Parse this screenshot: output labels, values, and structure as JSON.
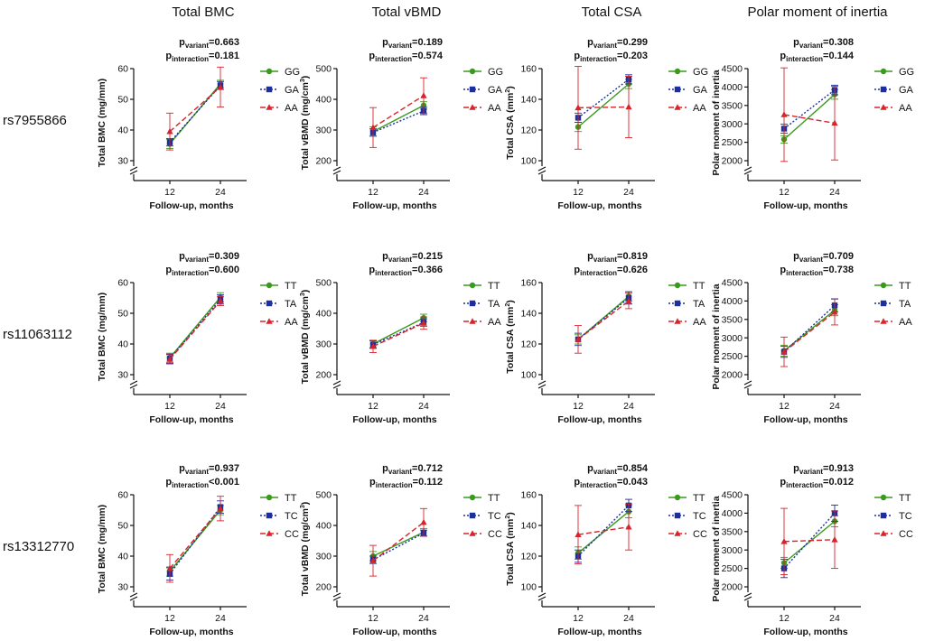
{
  "column_titles": [
    "Total BMC",
    "Total vBMD",
    "Total CSA",
    "Polar moment of inertia"
  ],
  "row_labels": [
    "rs7955866",
    "rs11063112",
    "rs13312770"
  ],
  "series_colors": [
    "#3a9a1e",
    "#1c2f9e",
    "#d8232a"
  ],
  "x_title": "Follow-up, months",
  "x_ticks": [
    "12",
    "24"
  ],
  "p_variant_label": "p",
  "p_variant_sub": "variant",
  "p_interaction_sub": "interaction",
  "chart_data": [
    {
      "type": "line",
      "row": 0,
      "col": 0,
      "ylabel": "Total BMC (mg/mm)",
      "ylim": [
        30,
        60
      ],
      "yticks": [
        30,
        40,
        50,
        60
      ],
      "p_variant": "=0.663",
      "p_interaction": "=0.181",
      "categories": [
        12,
        24
      ],
      "series": [
        {
          "name": "GG",
          "values": [
            35.5,
            55
          ],
          "err": [
            1.5,
            1.2
          ]
        },
        {
          "name": "GA",
          "values": [
            36,
            54.5
          ],
          "err": [
            1.2,
            1.3
          ]
        },
        {
          "name": "AA",
          "values": [
            39.5,
            54
          ],
          "err": [
            6,
            6.5
          ]
        }
      ]
    },
    {
      "type": "line",
      "row": 0,
      "col": 1,
      "ylabel": "Total vBMD (mg/cm³)",
      "ylim": [
        200,
        500
      ],
      "yticks": [
        200,
        300,
        400,
        500
      ],
      "p_variant": "=0.189",
      "p_interaction": "=0.574",
      "categories": [
        12,
        24
      ],
      "series": [
        {
          "name": "GG",
          "values": [
            295,
            380
          ],
          "err": [
            15,
            12
          ]
        },
        {
          "name": "GA",
          "values": [
            292,
            362
          ],
          "err": [
            12,
            12
          ]
        },
        {
          "name": "AA",
          "values": [
            308,
            412
          ],
          "err": [
            65,
            58
          ]
        }
      ]
    },
    {
      "type": "line",
      "row": 0,
      "col": 2,
      "ylabel": "Total CSA (mm²)",
      "ylim": [
        100,
        160
      ],
      "yticks": [
        100,
        120,
        140,
        160
      ],
      "p_variant": "=0.299",
      "p_interaction": "=0.203",
      "categories": [
        12,
        24
      ],
      "series": [
        {
          "name": "GG",
          "values": [
            122,
            150
          ],
          "err": [
            3,
            3
          ]
        },
        {
          "name": "GA",
          "values": [
            128,
            153
          ],
          "err": [
            3,
            3
          ]
        },
        {
          "name": "AA",
          "values": [
            134.5,
            135
          ],
          "err": [
            27,
            20
          ]
        }
      ]
    },
    {
      "type": "line",
      "row": 0,
      "col": 3,
      "ylabel": "Polar moment of inertia",
      "ylim": [
        2000,
        4500
      ],
      "yticks": [
        2000,
        2500,
        3000,
        3500,
        4000,
        4500
      ],
      "p_variant": "=0.308",
      "p_interaction": "=0.144",
      "categories": [
        12,
        24
      ],
      "series": [
        {
          "name": "GG",
          "values": [
            2580,
            3800
          ],
          "err": [
            100,
            130
          ]
        },
        {
          "name": "GA",
          "values": [
            2870,
            3920
          ],
          "err": [
            120,
            130
          ]
        },
        {
          "name": "AA",
          "values": [
            3250,
            3020
          ],
          "err": [
            1270,
            1000
          ]
        }
      ]
    },
    {
      "type": "line",
      "row": 1,
      "col": 0,
      "ylabel": "Total BMC (mg/mm)",
      "ylim": [
        30,
        60
      ],
      "yticks": [
        30,
        40,
        50,
        60
      ],
      "p_variant": "=0.309",
      "p_interaction": "=0.600",
      "categories": [
        12,
        24
      ],
      "series": [
        {
          "name": "TT",
          "values": [
            35.5,
            55.2
          ],
          "err": [
            1.5,
            1.5
          ]
        },
        {
          "name": "TA",
          "values": [
            35.2,
            54.5
          ],
          "err": [
            1.5,
            1.5
          ]
        },
        {
          "name": "AA",
          "values": [
            35,
            54
          ],
          "err": [
            1.5,
            1.5
          ]
        }
      ]
    },
    {
      "type": "line",
      "row": 1,
      "col": 1,
      "ylabel": "Total vBMD (mg/cm³)",
      "ylim": [
        200,
        500
      ],
      "yticks": [
        200,
        300,
        400,
        500
      ],
      "p_variant": "=0.215",
      "p_interaction": "=0.366",
      "categories": [
        12,
        24
      ],
      "series": [
        {
          "name": "TT",
          "values": [
            300,
            385
          ],
          "err": [
            12,
            12
          ]
        },
        {
          "name": "TA",
          "values": [
            298,
            370
          ],
          "err": [
            12,
            12
          ]
        },
        {
          "name": "AA",
          "values": [
            292,
            368
          ],
          "err": [
            20,
            20
          ]
        }
      ]
    },
    {
      "type": "line",
      "row": 1,
      "col": 2,
      "ylabel": "Total CSA (mm²)",
      "ylim": [
        100,
        160
      ],
      "yticks": [
        100,
        120,
        140,
        160
      ],
      "p_variant": "=0.819",
      "p_interaction": "=0.626",
      "categories": [
        12,
        24
      ],
      "series": [
        {
          "name": "TT",
          "values": [
            123,
            151
          ],
          "err": [
            3,
            3
          ]
        },
        {
          "name": "TA",
          "values": [
            123,
            150
          ],
          "err": [
            4,
            4
          ]
        },
        {
          "name": "AA",
          "values": [
            123,
            148
          ],
          "err": [
            9,
            5
          ]
        }
      ]
    },
    {
      "type": "line",
      "row": 1,
      "col": 3,
      "ylabel": "Polar moment of inertia",
      "ylim": [
        2000,
        4500
      ],
      "yticks": [
        2000,
        2500,
        3000,
        3500,
        4000,
        4500
      ],
      "p_variant": "=0.709",
      "p_interaction": "=0.738",
      "categories": [
        12,
        24
      ],
      "series": [
        {
          "name": "TT",
          "values": [
            2650,
            3750
          ],
          "err": [
            150,
            150
          ]
        },
        {
          "name": "TA",
          "values": [
            2620,
            3880
          ],
          "err": [
            150,
            180
          ]
        },
        {
          "name": "AA",
          "values": [
            2620,
            3700
          ],
          "err": [
            400,
            350
          ]
        }
      ]
    },
    {
      "type": "line",
      "row": 2,
      "col": 0,
      "ylabel": "Total BMC (mg/mm)",
      "ylim": [
        30,
        60
      ],
      "yticks": [
        30,
        40,
        50,
        60
      ],
      "p_variant": "=0.937",
      "p_interaction": "<0.001",
      "categories": [
        12,
        24
      ],
      "series": [
        {
          "name": "TT",
          "values": [
            35,
            55
          ],
          "err": [
            1.5,
            1.5
          ]
        },
        {
          "name": "TC",
          "values": [
            34.2,
            56
          ],
          "err": [
            2,
            2
          ]
        },
        {
          "name": "CC",
          "values": [
            36,
            55.5
          ],
          "err": [
            4.5,
            4
          ]
        }
      ]
    },
    {
      "type": "line",
      "row": 2,
      "col": 1,
      "ylabel": "Total vBMD (mg/cm³)",
      "ylim": [
        200,
        500
      ],
      "yticks": [
        200,
        300,
        400,
        500
      ],
      "p_variant": "=0.712",
      "p_interaction": "=0.112",
      "categories": [
        12,
        24
      ],
      "series": [
        {
          "name": "TT",
          "values": [
            300,
            378
          ],
          "err": [
            15,
            12
          ]
        },
        {
          "name": "TC",
          "values": [
            288,
            375
          ],
          "err": [
            12,
            10
          ]
        },
        {
          "name": "CC",
          "values": [
            285,
            410
          ],
          "err": [
            50,
            45
          ]
        }
      ]
    },
    {
      "type": "line",
      "row": 2,
      "col": 2,
      "ylabel": "Total CSA (mm²)",
      "ylim": [
        100,
        160
      ],
      "yticks": [
        100,
        120,
        140,
        160
      ],
      "p_variant": "=0.854",
      "p_interaction": "=0.043",
      "categories": [
        12,
        24
      ],
      "series": [
        {
          "name": "TT",
          "values": [
            122,
            149
          ],
          "err": [
            4,
            4
          ]
        },
        {
          "name": "TC",
          "values": [
            120,
            153
          ],
          "err": [
            4,
            4
          ]
        },
        {
          "name": "CC",
          "values": [
            134,
            139
          ],
          "err": [
            19,
            15
          ]
        }
      ]
    },
    {
      "type": "line",
      "row": 2,
      "col": 3,
      "ylabel": "Polar moment of inertia",
      "ylim": [
        2000,
        4500
      ],
      "yticks": [
        2000,
        2500,
        3000,
        3500,
        4000,
        4500
      ],
      "p_variant": "=0.913",
      "p_interaction": "=0.012",
      "categories": [
        12,
        24
      ],
      "series": [
        {
          "name": "TT",
          "values": [
            2650,
            3780
          ],
          "err": [
            150,
            150
          ]
        },
        {
          "name": "TC",
          "values": [
            2500,
            4000
          ],
          "err": [
            250,
            220
          ]
        },
        {
          "name": "CC",
          "values": [
            3230,
            3280
          ],
          "err": [
            900,
            780
          ]
        }
      ]
    }
  ]
}
